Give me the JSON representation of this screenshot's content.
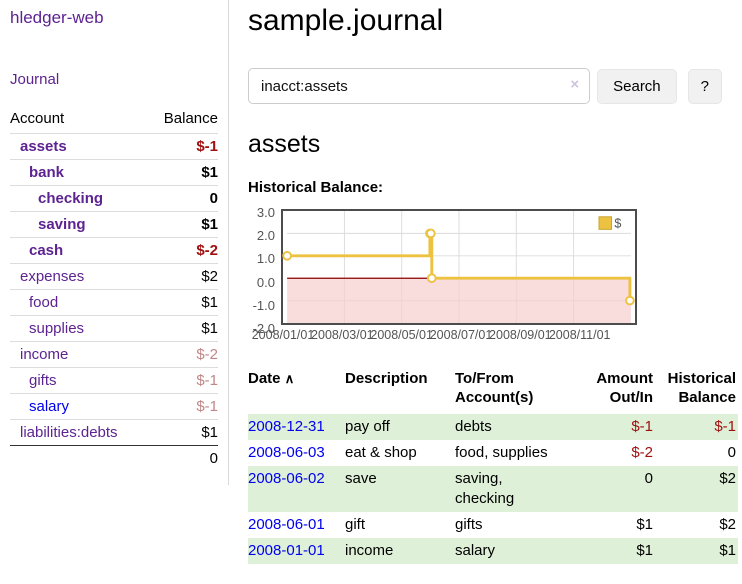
{
  "page": {
    "title": "sample.journal"
  },
  "sidebar": {
    "brand": "hledger-web",
    "nav_journal": "Journal",
    "table_headers": {
      "account": "Account",
      "balance": "Balance"
    },
    "accounts": [
      {
        "name": "assets",
        "balance": "$-1",
        "depth": 0,
        "in_query": true,
        "negative": "strong"
      },
      {
        "name": "bank",
        "balance": "$1",
        "depth": 1,
        "in_query": true
      },
      {
        "name": "checking",
        "balance": "0",
        "depth": 2,
        "in_query": true
      },
      {
        "name": "saving",
        "balance": "$1",
        "depth": 2,
        "in_query": true
      },
      {
        "name": "cash",
        "balance": "$-2",
        "depth": 1,
        "in_query": true,
        "negative": "strong"
      },
      {
        "name": "expenses",
        "balance": "$2",
        "depth": 0
      },
      {
        "name": "food",
        "balance": "$1",
        "depth": 1
      },
      {
        "name": "supplies",
        "balance": "$1",
        "depth": 1
      },
      {
        "name": "income",
        "balance": "$-2",
        "depth": 0,
        "negative": "soft"
      },
      {
        "name": "gifts",
        "balance": "$-1",
        "depth": 1,
        "negative": "soft"
      },
      {
        "name": "salary",
        "balance": "$-1",
        "depth": 1,
        "negative": "soft",
        "link_color": "blue"
      },
      {
        "name": "liabilities:debts",
        "balance": "$1",
        "depth": 0
      }
    ],
    "total": "0"
  },
  "search": {
    "value": "inacct:assets",
    "clear": "×",
    "button": "Search",
    "help": "?"
  },
  "query": {
    "heading": "assets",
    "chart_heading": "Historical Balance:"
  },
  "chart_data": {
    "type": "line",
    "step": true,
    "title": "Historical Balance:",
    "series": [
      {
        "name": "$",
        "color": "#EDC240",
        "points": [
          {
            "date": "2008-01-01",
            "value": 1
          },
          {
            "date": "2008-06-01",
            "value": 2
          },
          {
            "date": "2008-06-02",
            "value": 2
          },
          {
            "date": "2008-06-03",
            "value": 0
          },
          {
            "date": "2008-12-31",
            "value": -1
          }
        ]
      }
    ],
    "x_range": [
      "2008-01-01",
      "2009-01-01"
    ],
    "x_tick_labels": [
      "2008/01/01",
      "2008/03/01",
      "2008/05/01",
      "2008/07/01",
      "2008/09/01",
      "2008/11/01"
    ],
    "y_ticks": [
      3.0,
      2.0,
      1.0,
      0.0,
      -1.0,
      -2.0
    ],
    "y_tick_labels": [
      "3.0",
      "2.0",
      "1.0",
      "0.0",
      "-1.0",
      "-2.0"
    ],
    "ylim": [
      -2,
      3
    ],
    "grid": true,
    "legend_position": "top-right",
    "negative_region_color": "#f7cdcd",
    "zero_line_color": "#8b0000",
    "grid_color": "#dcdcdc",
    "border_color": "#4c4c4c",
    "label_color": "#545454"
  },
  "register": {
    "headers": {
      "date": "Date",
      "sort_indicator": "∧",
      "description": "Description",
      "accounts": "To/From Account(s)",
      "amount": "Amount Out/In",
      "balance": "Historical Balance"
    },
    "rows": [
      {
        "date": "2008-12-31",
        "description": "pay off",
        "accounts": "debts",
        "amount": "$-1",
        "balance": "$-1"
      },
      {
        "date": "2008-06-03",
        "description": "eat & shop",
        "accounts": "food, supplies",
        "amount": "$-2",
        "balance": "0"
      },
      {
        "date": "2008-06-02",
        "description": "save",
        "accounts": "saving,\nchecking",
        "amount": "0",
        "balance": "$2"
      },
      {
        "date": "2008-06-01",
        "description": "gift",
        "accounts": "gifts",
        "amount": "$1",
        "balance": "$2"
      },
      {
        "date": "2008-01-01",
        "description": "income",
        "accounts": "salary",
        "amount": "$1",
        "balance": "$1"
      }
    ]
  },
  "colors": {
    "link_purple": "#5d2391",
    "link_blue": "#0000ee",
    "negative_strong": "#a01010",
    "negative_soft": "#c28686",
    "row_green": "#dff0d8",
    "series_gold": "#EDC240",
    "below_zero_pink": "#f7cdcd",
    "zero_line_red": "#8b0000"
  }
}
